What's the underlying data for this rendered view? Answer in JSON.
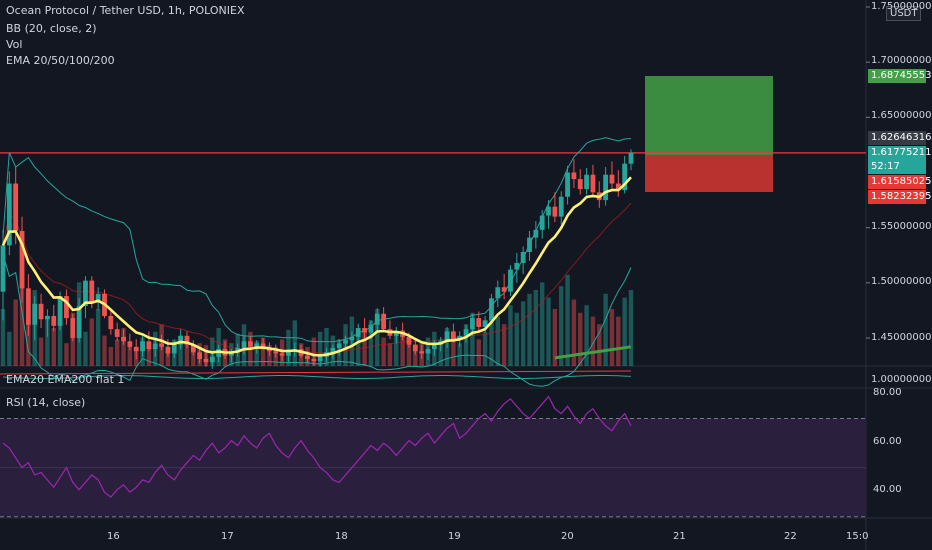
{
  "header": {
    "symbol_line": "Ocean Protocol / Tether USD, 1h, POLONIEX",
    "indicator_bb": "BB (20, close, 2)",
    "indicator_vol": "Vol",
    "indicator_ema": "EMA 20/50/100/200"
  },
  "price_axis": {
    "currency": "USDT",
    "ticks": [
      "1.75000000",
      "1.70000000",
      "1.65000000",
      "1.55000000",
      "1.50000000",
      "1.45000000"
    ],
    "tick_values": [
      1.75,
      1.7,
      1.65,
      1.55,
      1.5,
      1.45
    ],
    "boxes": {
      "target": "1.68745553",
      "bb_upper": "1.62646316",
      "last_price": "1.61775211",
      "countdown": "52:17",
      "entry": "1.61585025",
      "stop": "1.58232395"
    }
  },
  "subpanes": {
    "ema_pane_label": "EMA20 EMA200 flat 1",
    "ema_pane_tick": "1.00000000",
    "rsi_label": "RSI (14, close)",
    "rsi_ticks": [
      "80.00",
      "60.00",
      "40.00"
    ]
  },
  "time_axis": {
    "labels": [
      "16",
      "17",
      "18",
      "19",
      "20",
      "21",
      "22",
      "15:0"
    ]
  },
  "colors": {
    "background": "#131722",
    "up": "#26a69a",
    "down": "#ef5350",
    "ema": "#fff176",
    "bb": "#26a69a",
    "rsi": "#9c27b0",
    "horizontal_line": "#f23645",
    "target_zone": "#43a047",
    "stop_zone": "#e53935"
  },
  "chart_data": {
    "type": "candlestick",
    "series_ohlc": [
      [
        1.492,
        1.548,
        1.466,
        1.534
      ],
      [
        1.534,
        1.601,
        1.525,
        1.59
      ],
      [
        1.59,
        1.605,
        1.535,
        1.547
      ],
      [
        1.547,
        1.56,
        1.482,
        1.495
      ],
      [
        1.495,
        1.508,
        1.452,
        1.462
      ],
      [
        1.462,
        1.488,
        1.448,
        1.481
      ],
      [
        1.481,
        1.49,
        1.459,
        1.467
      ],
      [
        1.467,
        1.476,
        1.451,
        1.47
      ],
      [
        1.47,
        1.48,
        1.456,
        1.461
      ],
      [
        1.461,
        1.492,
        1.457,
        1.488
      ],
      [
        1.488,
        1.494,
        1.462,
        1.468
      ],
      [
        1.468,
        1.472,
        1.447,
        1.45
      ],
      [
        1.45,
        1.486,
        1.446,
        1.479
      ],
      [
        1.479,
        1.506,
        1.468,
        1.502
      ],
      [
        1.502,
        1.506,
        1.477,
        1.482
      ],
      [
        1.482,
        1.496,
        1.475,
        1.49
      ],
      [
        1.49,
        1.494,
        1.468,
        1.47
      ],
      [
        1.47,
        1.474,
        1.453,
        1.458
      ],
      [
        1.458,
        1.464,
        1.447,
        1.451
      ],
      [
        1.451,
        1.458,
        1.444,
        1.447
      ],
      [
        1.447,
        1.454,
        1.439,
        1.442
      ],
      [
        1.442,
        1.449,
        1.431,
        1.438
      ],
      [
        1.438,
        1.452,
        1.433,
        1.447
      ],
      [
        1.447,
        1.456,
        1.438,
        1.44
      ],
      [
        1.44,
        1.448,
        1.433,
        1.445
      ],
      [
        1.445,
        1.453,
        1.439,
        1.442
      ],
      [
        1.442,
        1.449,
        1.433,
        1.436
      ],
      [
        1.436,
        1.448,
        1.432,
        1.444
      ],
      [
        1.444,
        1.458,
        1.44,
        1.452
      ],
      [
        1.452,
        1.456,
        1.441,
        1.444
      ],
      [
        1.444,
        1.448,
        1.434,
        1.437
      ],
      [
        1.437,
        1.442,
        1.427,
        1.431
      ],
      [
        1.431,
        1.437,
        1.424,
        1.428
      ],
      [
        1.428,
        1.436,
        1.422,
        1.433
      ],
      [
        1.433,
        1.444,
        1.428,
        1.44
      ],
      [
        1.44,
        1.447,
        1.431,
        1.434
      ],
      [
        1.434,
        1.44,
        1.428,
        1.437
      ],
      [
        1.437,
        1.445,
        1.433,
        1.441
      ],
      [
        1.441,
        1.452,
        1.435,
        1.447
      ],
      [
        1.447,
        1.452,
        1.439,
        1.442
      ],
      [
        1.442,
        1.448,
        1.436,
        1.445
      ],
      [
        1.445,
        1.45,
        1.439,
        1.441
      ],
      [
        1.441,
        1.446,
        1.434,
        1.438
      ],
      [
        1.438,
        1.444,
        1.432,
        1.436
      ],
      [
        1.436,
        1.44,
        1.429,
        1.434
      ],
      [
        1.434,
        1.44,
        1.428,
        1.438
      ],
      [
        1.438,
        1.446,
        1.433,
        1.44
      ],
      [
        1.44,
        1.444,
        1.432,
        1.434
      ],
      [
        1.434,
        1.438,
        1.427,
        1.431
      ],
      [
        1.431,
        1.436,
        1.425,
        1.429
      ],
      [
        1.429,
        1.436,
        1.424,
        1.433
      ],
      [
        1.433,
        1.441,
        1.428,
        1.437
      ],
      [
        1.437,
        1.444,
        1.431,
        1.441
      ],
      [
        1.441,
        1.449,
        1.434,
        1.445
      ],
      [
        1.445,
        1.452,
        1.439,
        1.448
      ],
      [
        1.448,
        1.456,
        1.442,
        1.451
      ],
      [
        1.451,
        1.463,
        1.445,
        1.459
      ],
      [
        1.459,
        1.468,
        1.45,
        1.455
      ],
      [
        1.455,
        1.466,
        1.449,
        1.462
      ],
      [
        1.462,
        1.477,
        1.456,
        1.472
      ],
      [
        1.472,
        1.478,
        1.455,
        1.458
      ],
      [
        1.458,
        1.466,
        1.449,
        1.452
      ],
      [
        1.452,
        1.46,
        1.445,
        1.456
      ],
      [
        1.456,
        1.464,
        1.448,
        1.451
      ],
      [
        1.451,
        1.455,
        1.441,
        1.444
      ],
      [
        1.444,
        1.449,
        1.435,
        1.438
      ],
      [
        1.438,
        1.444,
        1.431,
        1.436
      ],
      [
        1.436,
        1.442,
        1.43,
        1.44
      ],
      [
        1.44,
        1.448,
        1.434,
        1.444
      ],
      [
        1.444,
        1.451,
        1.438,
        1.447
      ],
      [
        1.447,
        1.46,
        1.441,
        1.456
      ],
      [
        1.456,
        1.463,
        1.446,
        1.449
      ],
      [
        1.449,
        1.456,
        1.442,
        1.452
      ],
      [
        1.452,
        1.462,
        1.446,
        1.458
      ],
      [
        1.458,
        1.472,
        1.452,
        1.468
      ],
      [
        1.468,
        1.474,
        1.455,
        1.46
      ],
      [
        1.46,
        1.47,
        1.455,
        1.466
      ],
      [
        1.466,
        1.49,
        1.462,
        1.486
      ],
      [
        1.486,
        1.502,
        1.478,
        1.496
      ],
      [
        1.496,
        1.508,
        1.485,
        1.492
      ],
      [
        1.492,
        1.516,
        1.488,
        1.512
      ],
      [
        1.512,
        1.527,
        1.5,
        1.518
      ],
      [
        1.518,
        1.533,
        1.508,
        1.528
      ],
      [
        1.528,
        1.547,
        1.52,
        1.541
      ],
      [
        1.541,
        1.556,
        1.531,
        1.548
      ],
      [
        1.548,
        1.566,
        1.54,
        1.561
      ],
      [
        1.561,
        1.575,
        1.549,
        1.569
      ],
      [
        1.569,
        1.582,
        1.555,
        1.56
      ],
      [
        1.56,
        1.583,
        1.553,
        1.578
      ],
      [
        1.578,
        1.606,
        1.571,
        1.6
      ],
      [
        1.6,
        1.612,
        1.586,
        1.594
      ],
      [
        1.594,
        1.603,
        1.58,
        1.585
      ],
      [
        1.585,
        1.604,
        1.58,
        1.598
      ],
      [
        1.598,
        1.607,
        1.577,
        1.582
      ],
      [
        1.582,
        1.592,
        1.568,
        1.575
      ],
      [
        1.575,
        1.605,
        1.57,
        1.598
      ],
      [
        1.598,
        1.61,
        1.585,
        1.59
      ],
      [
        1.59,
        1.602,
        1.578,
        1.584
      ],
      [
        1.584,
        1.615,
        1.581,
        1.608
      ],
      [
        1.608,
        1.621,
        1.602,
        1.618
      ]
    ],
    "ema_pane": {
      "ticks": [
        "1.00000000"
      ]
    },
    "horizontal_line": 1.6178,
    "target": 1.68745553,
    "entry": 1.61585025,
    "stop": 1.58232395,
    "rsi": [
      60,
      58,
      54,
      50,
      52,
      47,
      48,
      45,
      42,
      46,
      50,
      44,
      41,
      44,
      47,
      45,
      40,
      38,
      41,
      43,
      40,
      42,
      45,
      44,
      48,
      51,
      47,
      45,
      49,
      52,
      55,
      53,
      57,
      60,
      56,
      58,
      61,
      59,
      63,
      60,
      58,
      62,
      64,
      59,
      56,
      54,
      58,
      61,
      57,
      54,
      50,
      48,
      45,
      44,
      47,
      50,
      53,
      56,
      59,
      57,
      60,
      58,
      55,
      58,
      61,
      59,
      62,
      64,
      60,
      63,
      66,
      68,
      62,
      64,
      67,
      70,
      72,
      69,
      73,
      76,
      78,
      75,
      72,
      70,
      73,
      76,
      79,
      74,
      72,
      75,
      71,
      68,
      72,
      74,
      70,
      67,
      65,
      69,
      72,
      67
    ],
    "rsi_levels": [
      70,
      30
    ],
    "volume": [
      30,
      18,
      35,
      50,
      22,
      40,
      15,
      26,
      20,
      33,
      12,
      28,
      44,
      18,
      25,
      30,
      16,
      10,
      14,
      20,
      12,
      9,
      15,
      11,
      18,
      22,
      10,
      14,
      16,
      13,
      9,
      12,
      11,
      15,
      20,
      14,
      12,
      17,
      22,
      18,
      13,
      15,
      11,
      10,
      14,
      19,
      24,
      12,
      10,
      15,
      18,
      20,
      16,
      14,
      22,
      26,
      18,
      20,
      24,
      30,
      15,
      12,
      16,
      19,
      14,
      10,
      12,
      15,
      18,
      14,
      20,
      16,
      12,
      22,
      28,
      14,
      18,
      30,
      26,
      22,
      32,
      28,
      34,
      38,
      40,
      44,
      36,
      30,
      42,
      48,
      35,
      28,
      32,
      26,
      22,
      38,
      30,
      26,
      36,
      40
    ]
  }
}
